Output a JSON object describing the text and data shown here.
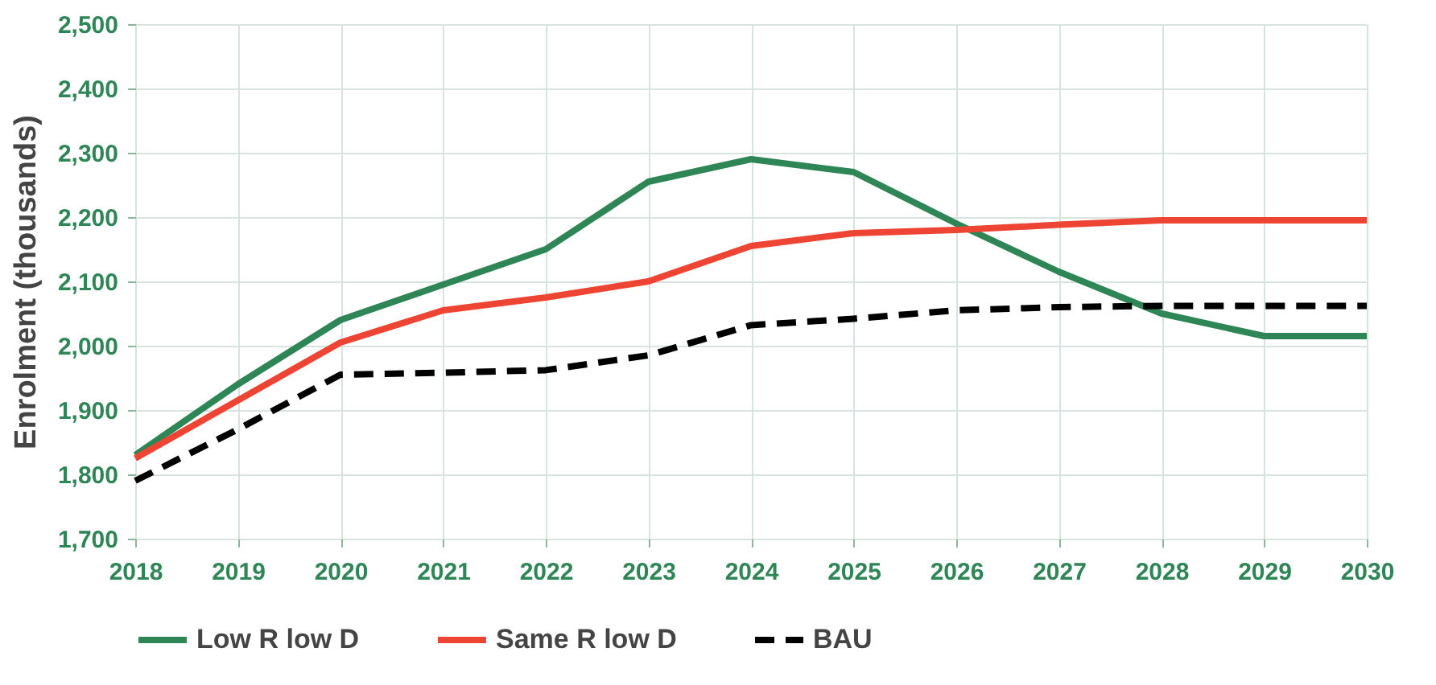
{
  "chart_data": {
    "type": "line",
    "ylabel": "Enrolment (thousands)",
    "x": [
      2018,
      2019,
      2020,
      2021,
      2022,
      2023,
      2024,
      2025,
      2026,
      2027,
      2028,
      2029,
      2030
    ],
    "xlim": [
      2018,
      2030
    ],
    "xticks": [
      2018,
      2019,
      2020,
      2021,
      2022,
      2023,
      2024,
      2025,
      2026,
      2027,
      2028,
      2029,
      2030
    ],
    "ylim": [
      1700,
      2500
    ],
    "yticks": [
      {
        "value": 1700,
        "label": "1,700"
      },
      {
        "value": 1800,
        "label": "1,800"
      },
      {
        "value": 1900,
        "label": "1,900"
      },
      {
        "value": 2000,
        "label": "2,000"
      },
      {
        "value": 2100,
        "label": "2,100"
      },
      {
        "value": 2200,
        "label": "2,200"
      },
      {
        "value": 2300,
        "label": "2,300"
      },
      {
        "value": 2400,
        "label": "2,400"
      },
      {
        "value": 2500,
        "label": "2,500"
      }
    ],
    "series": [
      {
        "name": "Low R low D",
        "color": "#2e8555",
        "line_style": "solid",
        "values": [
          1830,
          1940,
          2040,
          2095,
          2150,
          2255,
          2290,
          2270,
          2190,
          2115,
          2050,
          2015,
          2015
        ]
      },
      {
        "name": "Same R low D",
        "color": "#ee4433",
        "line_style": "solid",
        "values": [
          1825,
          1915,
          2005,
          2055,
          2075,
          2100,
          2155,
          2175,
          2180,
          2188,
          2195,
          2195,
          2195
        ]
      },
      {
        "name": "BAU",
        "color": "#000000",
        "line_style": "dashed",
        "values": [
          1790,
          1870,
          1955,
          1958,
          1962,
          1985,
          2032,
          2042,
          2055,
          2060,
          2062,
          2062,
          2062
        ]
      }
    ],
    "grid": true,
    "legend": "bottom"
  }
}
